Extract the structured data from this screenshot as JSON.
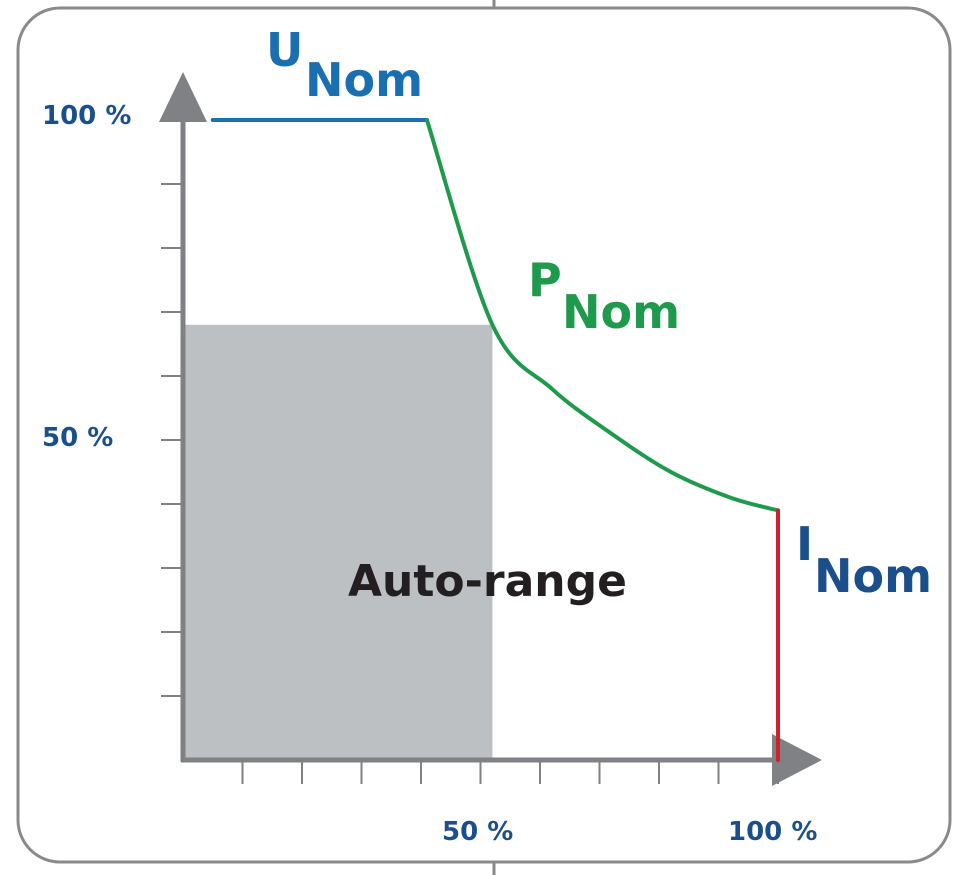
{
  "colors": {
    "frame": "#8a8a8a",
    "axis": "#808184",
    "voltage": "#1a6fb0",
    "power": "#1f9a4c",
    "current": "#d0202a",
    "autorange_fill": "#bcc0c3",
    "tick_label": "#1b4f8c",
    "region_text": "#231f20"
  },
  "labels": {
    "u_main": "U",
    "u_sub": "Nom",
    "p_main": "P",
    "p_sub": "Nom",
    "i_main": "I",
    "i_sub": "Nom",
    "autorange": "Auto-range"
  },
  "chart_data": {
    "type": "line",
    "x_ticks": [
      "50 %",
      "100 %"
    ],
    "y_ticks": [
      "100 %",
      "50 %"
    ],
    "xlim": [
      0,
      100
    ],
    "ylim": [
      0,
      100
    ],
    "series": [
      {
        "name": "UNom",
        "color": "voltage",
        "x": [
          5,
          41
        ],
        "y": [
          100,
          100
        ]
      },
      {
        "name": "PNom",
        "color": "power",
        "x": [
          41,
          52,
          62,
          72,
          82,
          92,
          100
        ],
        "y": [
          100,
          68,
          58,
          51,
          45,
          41,
          39
        ]
      },
      {
        "name": "INom",
        "color": "current",
        "x": [
          100,
          100
        ],
        "y": [
          39,
          0
        ]
      }
    ],
    "shaded_region": {
      "label": "Auto-range",
      "x": [
        0,
        52
      ],
      "y": [
        0,
        68
      ]
    }
  }
}
